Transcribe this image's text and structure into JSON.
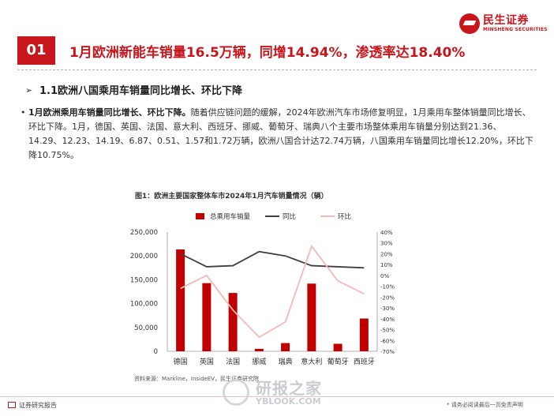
{
  "header": {
    "logo_text": "民生证券",
    "logo_subtext": "MINSHENG SECURITIES",
    "section_number": "01",
    "section_title": "1月欧洲新能车销量16.5万辆，同增14.94%，渗透率达18.40%"
  },
  "subsection": {
    "arrow": "➢",
    "title": "1.1欧洲八国乘用车销量同比增长、环比下降"
  },
  "body": {
    "bullet": "•",
    "lead": "1月欧洲乘用车销量同比增长、环比下降。",
    "text": "随着供应链问题的缓解，2024年欧洲汽车市场修复明显，1月乘用车整体销量同比增长、环比下降。1月，德国、英国、法国、意大利、西班牙、挪威、葡萄牙、瑞典八个主要市场整体乘用车销量分别达到21.36、14.29、12.23、14.19、6.87、0.51、1.57和1.72万辆，欧洲八国合计达72.74万辆，八国乘用车销量同比增长12.20%，环比下降10.75%。"
  },
  "chart_title": "图1：欧洲主要国家整体车市2024年1月汽车销量情况（辆）",
  "chart_data": {
    "type": "bar",
    "categories": [
      "德国",
      "英国",
      "法国",
      "挪威",
      "瑞典",
      "意大利",
      "葡萄牙",
      "西班牙"
    ],
    "series": [
      {
        "name": "总乘用车销量",
        "type": "bar",
        "axis": "left",
        "color": "#c00000",
        "values": [
          213600,
          142900,
          122300,
          5100,
          17200,
          141900,
          15700,
          68700
        ]
      },
      {
        "name": "同比",
        "type": "line",
        "axis": "right",
        "color": "#404040",
        "values": [
          20,
          8,
          9,
          22,
          18,
          9,
          8,
          7
        ]
      },
      {
        "name": "环比",
        "type": "line",
        "axis": "right",
        "color": "#f4b8b8",
        "values": [
          -12,
          0,
          -32,
          -57,
          -43,
          27,
          -5,
          -17
        ]
      }
    ],
    "y_left": {
      "min": 0,
      "max": 250000,
      "ticks": [
        "0",
        "50,000",
        "100,000",
        "150,000",
        "200,000",
        "250,000"
      ]
    },
    "y_right": {
      "min": -70,
      "max": 40,
      "ticks": [
        "-70%",
        "-60%",
        "-50%",
        "-40%",
        "-30%",
        "-20%",
        "-10%",
        "0%",
        "10%",
        "20%",
        "30%",
        "40%"
      ]
    },
    "legend_position": "top",
    "grid": false
  },
  "source": "资料来源：Markline，InsideEV，民生证券研究院",
  "footer": {
    "left": "证券研究报告",
    "right": "* 请务必阅读最后一页免责声明"
  },
  "watermark": {
    "cn": "研报之家",
    "en": "YBLOOK.COM"
  }
}
